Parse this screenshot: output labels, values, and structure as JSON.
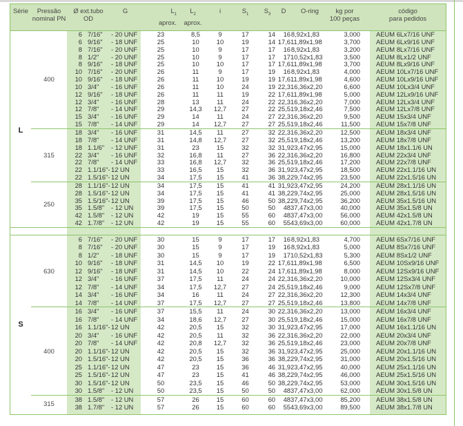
{
  "header": {
    "serie": "Série",
    "pressao_line1": "Pressão",
    "pressao_line2": "nominal PN",
    "od_line1": "Ø ext.tubo",
    "od_line2": "OD",
    "g": "G",
    "l1": "L",
    "l1_sub": "1",
    "l1_note": "aprox.",
    "l2": "L",
    "l2_sub": "2",
    "l2_note": "aprox.",
    "i": "i",
    "s1": "S",
    "s1_sub": "1",
    "s3": "S",
    "s3_sub": "3",
    "d": "D",
    "oring": "O-ring",
    "kg_line1": "kg por",
    "kg_line2": "100 peças",
    "codigo_line1": "código",
    "codigo_line2": "para pedidos"
  },
  "colors": {
    "border": "#8cc46a",
    "header_bg": "#cfe4bc",
    "shade": "#d6e9c7"
  },
  "sections": [
    {
      "serie": "L",
      "groups": [
        {
          "pn": "400",
          "rows": [
            [
              "6",
              "7/16\"",
              "- 20 UNF",
              "23",
              "8,5",
              "9",
              "17",
              "14",
              "16",
              "8,92x1,83",
              "3,000",
              "AEUM 6Lx7/16 UNF"
            ],
            [
              "6",
              "9/16\"",
              "- 18 UNF",
              "25",
              "10",
              "10",
              "19",
              "14",
              "17,6",
              "11,89x1,98",
              "3,700",
              "AEUM 6Lx9/16 UNF"
            ],
            [
              "8",
              "7/16\"",
              "- 20 UNF",
              "25",
              "10",
              "9",
              "17",
              "17",
              "16",
              "8,92x1,83",
              "3,200",
              "AEUM 8Lx7/16 UNF"
            ],
            [
              "8",
              "1/2\"",
              "- 20 UNF",
              "25",
              "10",
              "9",
              "17",
              "17",
              "17",
              "10,52x1,83",
              "3,500",
              "AEUM 8Lx1/2 UNF"
            ],
            [
              "8",
              "9/16\"",
              "- 18 UNF",
              "25",
              "10",
              "10",
              "17",
              "17",
              "17,6",
              "11,89x1,98",
              "3,700",
              "AEUM 8Lx9/16 UNF"
            ],
            [
              "10",
              "7/16\"",
              "- 20 UNF",
              "26",
              "11",
              "9",
              "17",
              "19",
              "16",
              "8,92x1,83",
              "4,000",
              "AEUM 10Lx7/16 UNF"
            ],
            [
              "10",
              "9/16\"",
              "- 18 UNF",
              "26",
              "11",
              "10",
              "19",
              "19",
              "17,6",
              "11,89x1,98",
              "4,600",
              "AEUM 10Lx9/16 UNF"
            ],
            [
              "10",
              "3/4\"",
              "- 16 UNF",
              "26",
              "11",
              "10",
              "24",
              "19",
              "22,3",
              "16,36x2,20",
              "6,600",
              "AEUM 10Lx3/4 UNF"
            ],
            [
              "12",
              "9/16\"",
              "- 18 UNF",
              "26",
              "11",
              "11",
              "19",
              "22",
              "17,6",
              "11,89x1,98",
              "5,000",
              "AEUM 12Lx9/16 UNF"
            ],
            [
              "12",
              "3/4\"",
              "- 16 UNF",
              "28",
              "13",
              "11",
              "24",
              "22",
              "22,3",
              "16,36x2,20",
              "7,000",
              "AEUM 12Lx3/4 UNF"
            ],
            [
              "12",
              "7/8\"",
              "- 14 UNF",
              "29",
              "14,3",
              "12,7",
              "27",
              "22",
              "25,5",
              "19,18x2,46",
              "7,500",
              "AEUM 12Lx7/8 UNF"
            ],
            [
              "15",
              "3/4\"",
              "- 16 UNF",
              "29",
              "14",
              "11",
              "24",
              "27",
              "22,3",
              "16,36x2,20",
              "9,500",
              "AEUM 15x3/4 UNF"
            ],
            [
              "15",
              "7/8\"",
              "- 14 UNF",
              "29",
              "14",
              "12,7",
              "27",
              "27",
              "25,5",
              "19,18x2,46",
              "11,500",
              "AEUM 15x7/8 UNF"
            ]
          ]
        },
        {
          "pn": "315",
          "rows": [
            [
              "18",
              "3/4\"",
              "- 16 UNF",
              "31",
              "14,5",
              "11",
              "27",
              "32",
              "22,3",
              "16,36x2,20",
              "12,500",
              "AEUM 18x3/4 UNF"
            ],
            [
              "18",
              "7/8\"",
              "- 14 UNF",
              "31",
              "14,8",
              "12,7",
              "27",
              "32",
              "25,5",
              "19,18x2,46",
              "13,200",
              "AEUM 18x7/8 UNF"
            ],
            [
              "18",
              "1.1/6\"",
              "- 12 UNF",
              "31",
              "23",
              "15",
              "32",
              "32",
              "31,9",
              "23,47x2,95",
              "15,000",
              "AEUM 18x1.1/6 UN"
            ],
            [
              "22",
              "3/4\"",
              "- 16 UNF",
              "32",
              "16,8",
              "11",
              "27",
              "36",
              "22,3",
              "16,36x2,20",
              "16,800",
              "AEUM 22x3/4 UNF"
            ],
            [
              "22",
              "7/8\"",
              "- 14 UNF",
              "33",
              "16,8",
              "12,7",
              "32",
              "36",
              "25,5",
              "19,18x2,46",
              "17,200",
              "AEUM 22x7/8 UNF"
            ],
            [
              "22",
              "1.1/16\"-",
              "12 UN",
              "33",
              "16,5",
              "15",
              "32",
              "36",
              "31,9",
              "23,47x2,95",
              "18,500",
              "AEUM 22x1.1/16 UN"
            ],
            [
              "22",
              "1.5/16\"-",
              "12 UN",
              "34",
              "17,5",
              "15",
              "41",
              "36",
              "38,2",
              "29,74x2,95",
              "23,500",
              "AEUM 22x1.5/16 UN"
            ]
          ]
        },
        {
          "pn": "250",
          "rows": [
            [
              "28",
              "1.1/16\"-",
              "12 UN",
              "34",
              "17,5",
              "15",
              "41",
              "41",
              "31,9",
              "23,47x2,95",
              "24,200",
              "AEUM 28x1.1/16 UN"
            ],
            [
              "28",
              "1.5/16\"-",
              "12 UN",
              "34",
              "17,5",
              "15",
              "41",
              "41",
              "38,2",
              "29,74x2,95",
              "25,000",
              "AEUM 28x1.5/16 UN"
            ],
            [
              "35",
              "1.5/16\"-",
              "12 UN",
              "39",
              "17,5",
              "15",
              "46",
              "50",
              "38,2",
              "29,74x2,95",
              "36,200",
              "AEUM 35x1.5/16 UN"
            ],
            [
              "35",
              "1.5/8\"",
              "- 12 UN",
              "39",
              "17,5",
              "15",
              "50",
              "50",
              "48",
              "37,47x3,00",
              "40,000",
              "AEUM 35x1.5/8 UN"
            ],
            [
              "42",
              "1.5/8\"",
              "- 12 UN",
              "42",
              "19",
              "15",
              "55",
              "60",
              "48",
              "37,47x3,00",
              "56,000",
              "AEUM 42x1.5/8 UN"
            ],
            [
              "42",
              "1.7/8\"",
              "- 12 UN",
              "42",
              "19",
              "15",
              "55",
              "60",
              "55",
              "43,69x3,00",
              "60,000",
              "AEUM 42x1.7/8 UN"
            ]
          ]
        }
      ]
    },
    {
      "serie": "S",
      "groups": [
        {
          "pn": "630",
          "rows": [
            [
              "6",
              "7/16\"",
              "- 20 UNF",
              "30",
              "15",
              "9",
              "17",
              "17",
              "16",
              "8,92x1,83",
              "4,700",
              "AEUM 6Sx7/16 UNF"
            ],
            [
              "8",
              "7/16\"",
              "- 20 UNF",
              "30",
              "15",
              "9",
              "17",
              "19",
              "16",
              "8,92x1,83",
              "5,000",
              "AEUM 8Sx7/16 UNF"
            ],
            [
              "8",
              "1/2\"",
              "- 18 UNF",
              "30",
              "15",
              "9",
              "17",
              "19",
              "17",
              "10,52x1,83",
              "5,300",
              "AEUM 8Sx1/2 UNF"
            ],
            [
              "10",
              "9/16\"",
              "- 18 UNF",
              "31",
              "14,5",
              "10",
              "19",
              "22",
              "17,6",
              "11,89x1,98",
              "6,500",
              "AEUM 10Sx9/16 UNF"
            ],
            [
              "12",
              "9/16\"",
              "- 18 UNF",
              "31",
              "14,5",
              "10",
              "22",
              "24",
              "17,6",
              "11,89x1,98",
              "8,000",
              "AEUM 12Sx9/16 UNF"
            ],
            [
              "12",
              "3/4\"",
              "- 16 UNF",
              "37",
              "17,5",
              "11",
              "24",
              "24",
              "22,3",
              "16,36x2,20",
              "10,000",
              "AEUM 12Sx3/4 UNF"
            ],
            [
              "12",
              "7/8\"",
              "- 14 UNF",
              "34",
              "17,5",
              "12,7",
              "27",
              "24",
              "25,5",
              "19,18x2,46",
              "9,000",
              "AEUM 12Sx7/8 UNF"
            ],
            [
              "14",
              "3/4\"",
              "- 16 UNF",
              "34",
              "16",
              "11",
              "24",
              "27",
              "22,3",
              "16,36x2,20",
              "12,300",
              "AEUM 14x3/4 UNF"
            ],
            [
              "14",
              "7/8\"",
              "- 14 UNF",
              "37",
              "17,5",
              "12,7",
              "27",
              "27",
              "25,5",
              "19,18x2,46",
              "13,800",
              "AEUM 14x7/8 UNF"
            ]
          ]
        },
        {
          "pn": "400",
          "rows": [
            [
              "16",
              "3/4\"",
              "- 16 UNF",
              "37",
              "15,5",
              "11",
              "24",
              "30",
              "22,3",
              "16,36x2,20",
              "13,000",
              "AEUM 16x3/4 UNF"
            ],
            [
              "16",
              "7/8\"",
              "- 14 UNF",
              "34",
              "18,6",
              "12,7",
              "27",
              "30",
              "25,5",
              "19,18x2,46",
              "15,000",
              "AEUM 16x7/8 UNF"
            ],
            [
              "16",
              "1.1/16\"-",
              "12 UN",
              "42",
              "20,5",
              "15",
              "32",
              "30",
              "31,9",
              "23,47x2,95",
              "17,000",
              "AEUM 16x1.1/16 UN"
            ],
            [
              "20",
              "3/4\"",
              "- 16 UNF",
              "42",
              "20,5",
              "11",
              "32",
              "36",
              "22,3",
              "16,36x2,20",
              "22,000",
              "AEUM 20x3/4 UNF"
            ],
            [
              "20",
              "7/8\"",
              "- 14 UNF",
              "42",
              "20,8",
              "12,7",
              "32",
              "36",
              "25,5",
              "19,18x2,46",
              "23,000",
              "AEUM 20x7/8 UNF"
            ],
            [
              "20",
              "1.1/16\"-",
              "12 UN",
              "42",
              "20,5",
              "15",
              "32",
              "36",
              "31,9",
              "23,47x2,95",
              "25,000",
              "AEUM 20x1.1/16 UN"
            ],
            [
              "20",
              "1.5/16\"-",
              "12 UN",
              "42",
              "20,5",
              "15",
              "36",
              "36",
              "38,2",
              "29,74x2,95",
              "31,000",
              "AEUM 20x1.5/16 UN"
            ],
            [
              "25",
              "1.1/16\"-",
              "12 UN",
              "47",
              "23",
              "15",
              "36",
              "46",
              "31,9",
              "23,47x2,95",
              "40,000",
              "AEUM 25x1.1/16 UN"
            ],
            [
              "25",
              "1.5/16\"-",
              "12 UN",
              "47",
              "23",
              "15",
              "41",
              "46",
              "38,2",
              "29,74x2,95",
              "46,000",
              "AEUM 25x1.5/16 UN"
            ],
            [
              "30",
              "1.5/16\"-",
              "12 UN",
              "50",
              "23,5",
              "15",
              "46",
              "50",
              "38,2",
              "29,74x2,95",
              "53,000",
              "AEUM 30x1.5/16 UN"
            ],
            [
              "30",
              "1.5/8\"",
              "- 12 UN",
              "50",
              "23,5",
              "15",
              "50",
              "50",
              "48",
              "37,47x3,00",
              "62,000",
              "AEUM 30x1.5/8 UN"
            ]
          ]
        },
        {
          "pn": "315",
          "rows": [
            [
              "38",
              "1.5/8\"",
              "- 12 UN",
              "57",
              "26",
              "15",
              "60",
              "60",
              "48",
              "37,47x3,00",
              "85,200",
              "AEUM 38x1.5/8 UN"
            ],
            [
              "38",
              "1.7/8\"",
              "- 12 UN",
              "57",
              "26",
              "15",
              "60",
              "60",
              "55",
              "43,69x3,00",
              "89,500",
              "AEUM 38x1.7/8 UN"
            ]
          ]
        }
      ]
    }
  ]
}
